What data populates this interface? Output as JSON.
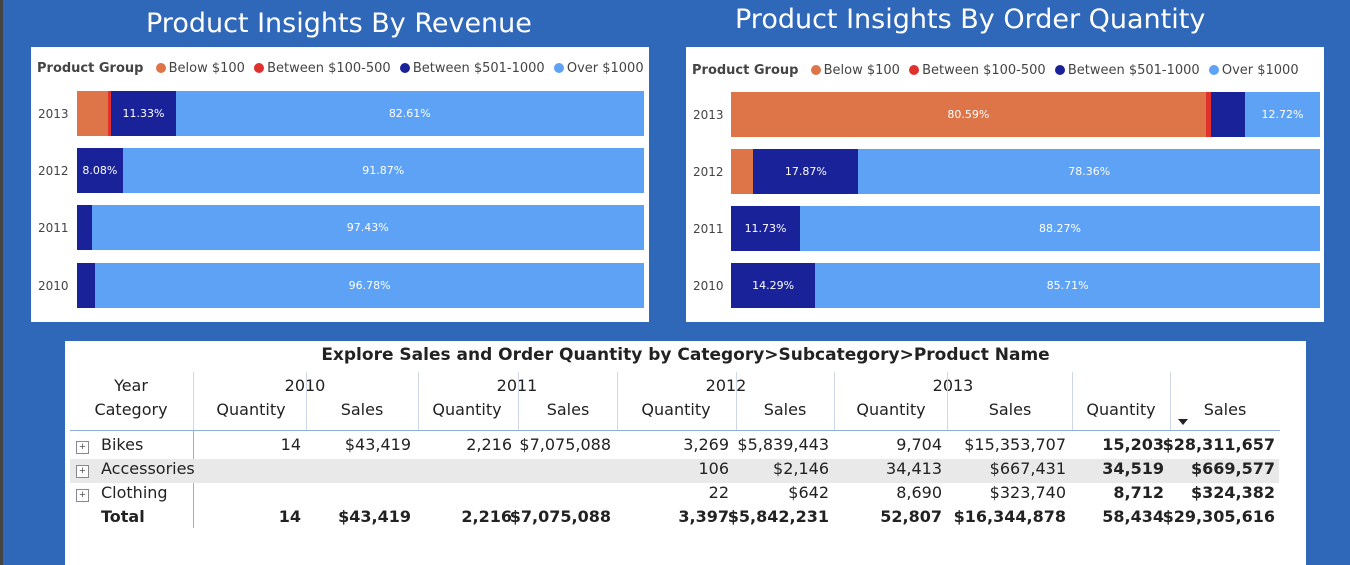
{
  "colors": {
    "background": "#2f67b9",
    "below_100": "#dd7548",
    "between_100_500": "#e0312c",
    "between_501_1000": "#1a2299",
    "over_1000": "#5ea2f6"
  },
  "legend": {
    "title": "Product Group",
    "items": [
      {
        "label": "Below $100",
        "color": "#dd7548"
      },
      {
        "label": "Between $100-500",
        "color": "#e0312c"
      },
      {
        "label": "Between $501-1000",
        "color": "#1a2299"
      },
      {
        "label": "Over $1000",
        "color": "#5ea2f6"
      }
    ]
  },
  "chart_data": [
    {
      "type": "bar",
      "stacked": "100%",
      "orientation": "horizontal",
      "title": "Product Insights By Revenue",
      "categories": [
        "2013",
        "2012",
        "2011",
        "2010"
      ],
      "series": [
        {
          "name": "Below $100",
          "values": [
            5.5,
            0,
            0,
            0
          ]
        },
        {
          "name": "Between $100-500",
          "values": [
            0.56,
            0,
            0,
            0
          ]
        },
        {
          "name": "Between $501-1000",
          "values": [
            11.33,
            8.08,
            2.57,
            3.22
          ]
        },
        {
          "name": "Over $1000",
          "values": [
            82.61,
            91.87,
            97.43,
            96.78
          ]
        }
      ],
      "labels": [
        [
          "",
          "",
          "11.33%",
          "82.61%"
        ],
        [
          "",
          "",
          "8.08%",
          "91.87%"
        ],
        [
          "",
          "",
          "",
          "97.43%"
        ],
        [
          "",
          "",
          "",
          "96.78%"
        ]
      ]
    },
    {
      "type": "bar",
      "stacked": "100%",
      "orientation": "horizontal",
      "title": "Product Insights By Order Quantity",
      "categories": [
        "2013",
        "2012",
        "2011",
        "2010"
      ],
      "series": [
        {
          "name": "Below $100",
          "values": [
            80.59,
            3.77,
            0,
            0
          ]
        },
        {
          "name": "Between $100-500",
          "values": [
            0.97,
            0,
            0,
            0
          ]
        },
        {
          "name": "Between $501-1000",
          "values": [
            5.72,
            17.87,
            11.73,
            14.29
          ]
        },
        {
          "name": "Over $1000",
          "values": [
            12.72,
            78.36,
            88.27,
            85.71
          ]
        }
      ],
      "labels": [
        [
          "80.59%",
          "",
          "",
          "12.72%"
        ],
        [
          "",
          "",
          "17.87%",
          "78.36%"
        ],
        [
          "",
          "",
          "11.73%",
          "88.27%"
        ],
        [
          "",
          "",
          "14.29%",
          "85.71%"
        ]
      ]
    }
  ],
  "table": {
    "title": "Explore Sales and Order Quantity by Category>Subcategory>Product Name",
    "row_header_top": "Year",
    "row_header_bottom": "Category",
    "years": [
      "2010",
      "2011",
      "2012",
      "2013"
    ],
    "col_quantity": "Quantity",
    "col_sales": "Sales",
    "rows": [
      {
        "category": "Bikes",
        "cells": [
          "14",
          "$43,419",
          "2,216",
          "$7,075,088",
          "3,269",
          "$5,839,443",
          "9,704",
          "$15,353,707",
          "15,203",
          "$28,311,657"
        ],
        "expander": "+"
      },
      {
        "category": "Accessories",
        "cells": [
          "",
          "",
          "",
          "",
          "106",
          "$2,146",
          "34,413",
          "$667,431",
          "34,519",
          "$669,577"
        ],
        "expander": "+"
      },
      {
        "category": "Clothing",
        "cells": [
          "",
          "",
          "",
          "",
          "22",
          "$642",
          "8,690",
          "$323,740",
          "8,712",
          "$324,382"
        ],
        "expander": "+"
      },
      {
        "category": "Total",
        "cells": [
          "14",
          "$43,419",
          "2,216",
          "$7,075,088",
          "3,397",
          "$5,842,231",
          "52,807",
          "$16,344,878",
          "58,434",
          "$29,305,616"
        ]
      }
    ]
  }
}
